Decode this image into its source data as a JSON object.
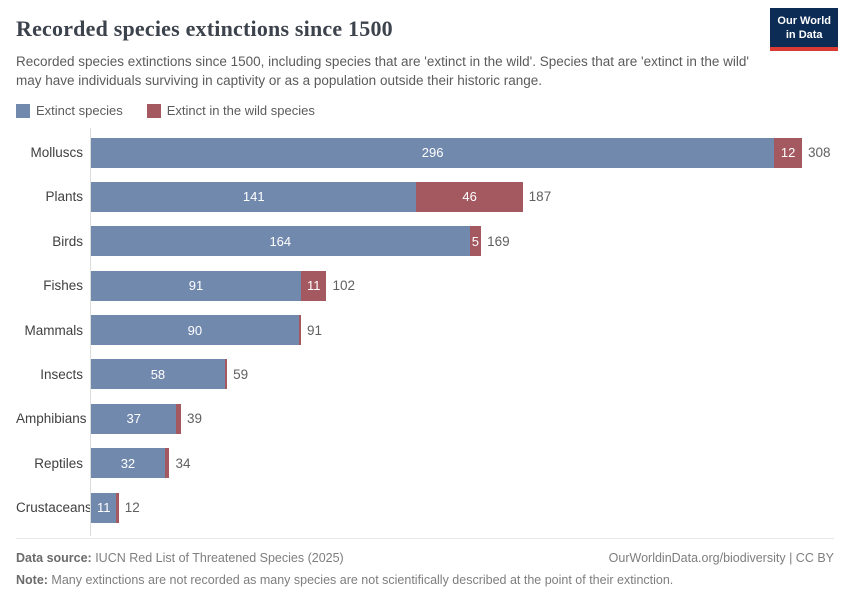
{
  "brand": {
    "logo_line1": "Our World",
    "logo_line2": "in Data",
    "navy": "#0c2c55",
    "red": "#d93a34"
  },
  "header": {
    "title": "Recorded species extinctions since 1500",
    "subtitle": "Recorded species extinctions since 1500, including species that are 'extinct in the wild'. Species that are 'extinct in the wild' may have individuals surviving in captivity or as a population outside their historic range."
  },
  "chart_data": {
    "type": "bar",
    "orientation": "horizontal",
    "title": "Recorded species extinctions since 1500",
    "categories": [
      "Molluscs",
      "Plants",
      "Birds",
      "Fishes",
      "Mammals",
      "Insects",
      "Amphibians",
      "Reptiles",
      "Crustaceans"
    ],
    "series": [
      {
        "name": "Extinct species",
        "color": "#7289ae",
        "values": [
          296,
          141,
          164,
          91,
          90,
          58,
          37,
          32,
          11
        ]
      },
      {
        "name": "Extinct in the wild species",
        "color": "#a4585f",
        "values": [
          12,
          46,
          5,
          11,
          1,
          1,
          2,
          2,
          1
        ]
      }
    ],
    "totals": [
      308,
      187,
      169,
      102,
      91,
      59,
      39,
      34,
      12
    ],
    "xmax": 308,
    "grid": false,
    "legend_position": "top",
    "value_label_color_inside": "#ffffff",
    "value_label_color_total": "#606060"
  },
  "footer": {
    "source_label": "Data source:",
    "source_text": " IUCN Red List of Threatened Species (2025)",
    "link": "OurWorldinData.org/biodiversity | CC BY",
    "note_label": "Note:",
    "note_text": " Many extinctions are not recorded as many species are not scientifically described at the point of their extinction."
  }
}
